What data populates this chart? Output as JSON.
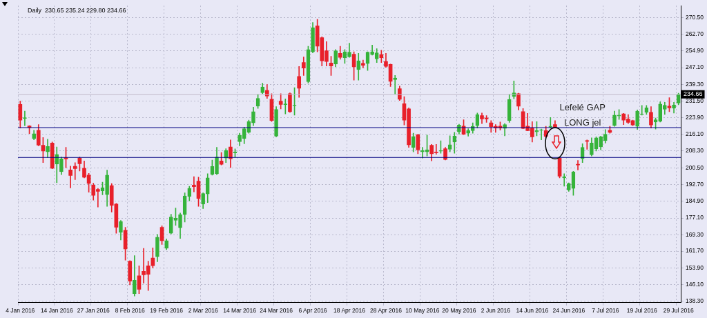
{
  "chart_data": {
    "type": "candlestick",
    "title": "Daily  230.65 235.24 229.80 234.66",
    "categories": [
      "4 Jan 2016",
      null,
      null,
      null,
      null,
      null,
      null,
      null,
      "14 Jan 2016",
      null,
      null,
      null,
      null,
      null,
      null,
      null,
      "27 Jan 2016",
      null,
      null,
      null,
      null,
      null,
      null,
      null,
      "8 Feb 2016",
      null,
      null,
      null,
      null,
      null,
      null,
      null,
      "19 Feb 2016",
      null,
      null,
      null,
      null,
      null,
      null,
      null,
      "2 Mar 2016",
      null,
      null,
      null,
      null,
      null,
      null,
      null,
      "14 Mar 2016",
      null,
      null,
      null,
      null,
      null,
      null,
      null,
      "24 Mar 2016",
      null,
      null,
      null,
      null,
      null,
      null,
      null,
      "6 Apr 2016",
      null,
      null,
      null,
      null,
      null,
      null,
      null,
      "18 Apr 2016",
      null,
      null,
      null,
      null,
      null,
      null,
      null,
      "28 Apr 2016",
      null,
      null,
      null,
      null,
      null,
      null,
      null,
      "10 May 2016",
      null,
      null,
      null,
      null,
      null,
      null,
      null,
      "20 May 2016",
      null,
      null,
      null,
      null,
      null,
      null,
      null,
      "2 Jun 2016",
      null,
      null,
      null,
      null,
      null,
      null,
      null,
      "14 Jun 2016",
      null,
      null,
      null,
      null,
      null,
      null,
      null,
      "24 Jun 2016",
      null,
      null,
      null,
      null,
      null,
      null,
      null,
      "7 Jul 2016",
      null,
      null,
      null,
      null,
      null,
      null,
      null,
      "19 Jul 2016",
      null,
      null,
      null,
      null,
      null,
      null,
      null,
      "29 Jul 2016"
    ],
    "ohlc": [
      [
        230.0,
        231.5,
        219.0,
        222.7
      ],
      [
        223.5,
        226.9,
        220.1,
        223.6
      ],
      [
        220.0,
        220.1,
        216.4,
        219.2
      ],
      [
        214.1,
        218.0,
        213.5,
        216.4
      ],
      [
        218.0,
        220.6,
        210.7,
        211.0
      ],
      [
        211.0,
        214.6,
        202.9,
        208.3
      ],
      [
        207.9,
        213.8,
        205.3,
        210.4
      ],
      [
        212.0,
        212.5,
        200.0,
        200.3
      ],
      [
        202.2,
        210.2,
        193.5,
        206.7
      ],
      [
        198.7,
        205.5,
        197.3,
        204.7
      ],
      [
        205.2,
        210.0,
        200.5,
        204.6
      ],
      [
        199.5,
        201.3,
        191.1,
        196.9
      ],
      [
        201.2,
        202.9,
        195.0,
        200.1
      ],
      [
        205.0,
        205.5,
        199.0,
        202.4
      ],
      [
        200.3,
        203.7,
        195.8,
        196.1
      ],
      [
        197.1,
        197.9,
        189.1,
        193.2
      ],
      [
        192.4,
        193.3,
        185.4,
        187.7
      ],
      [
        190.4,
        190.9,
        182.2,
        189.5
      ],
      [
        189.8,
        193.8,
        187.9,
        191.2
      ],
      [
        188.0,
        199.4,
        182.5,
        197.1
      ],
      [
        192.2,
        193.2,
        179.9,
        183.0
      ],
      [
        183.6,
        183.9,
        170.0,
        172.8
      ],
      [
        170.5,
        176.0,
        166.9,
        175.5
      ],
      [
        171.4,
        172.8,
        157.5,
        162.7
      ],
      [
        157.0,
        157.3,
        146.0,
        147.8
      ],
      [
        141.9,
        159.6,
        140.8,
        148.1
      ],
      [
        150.2,
        154.9,
        141.9,
        143.9
      ],
      [
        152.3,
        163.0,
        146.8,
        150.7
      ],
      [
        154.9,
        157.0,
        143.4,
        150.9
      ],
      [
        158.5,
        163.2,
        153.9,
        154.9
      ],
      [
        159.1,
        169.5,
        156.8,
        168.2
      ],
      [
        172.8,
        173.5,
        164.8,
        166.6
      ],
      [
        163.0,
        167.4,
        162.4,
        166.6
      ],
      [
        170.0,
        178.9,
        169.7,
        177.6
      ],
      [
        176.0,
        181.8,
        173.7,
        177.0
      ],
      [
        172.6,
        179.4,
        167.6,
        178.7
      ],
      [
        178.7,
        188.8,
        175.2,
        187.4
      ],
      [
        187.2,
        191.9,
        185.1,
        190.9
      ],
      [
        192.4,
        196.4,
        189.3,
        191.7
      ],
      [
        194.3,
        196.1,
        182.5,
        186.2
      ],
      [
        183.6,
        188.8,
        181.5,
        188.5
      ],
      [
        188.3,
        197.7,
        184.3,
        195.8
      ],
      [
        197.4,
        204.1,
        197.1,
        201.1
      ],
      [
        197.7,
        210.0,
        197.3,
        205.5
      ],
      [
        203.7,
        207.6,
        201.8,
        202.1
      ],
      [
        205.0,
        209.4,
        202.9,
        208.6
      ],
      [
        210.2,
        213.5,
        200.6,
        204.7
      ],
      [
        207.4,
        209.3,
        205.5,
        207.9
      ],
      [
        212.6,
        216.6,
        210.7,
        215.7
      ],
      [
        214.1,
        219.4,
        211.7,
        218.7
      ],
      [
        217.0,
        222.7,
        216.6,
        222.0
      ],
      [
        221.4,
        228.7,
        220.1,
        226.6
      ],
      [
        229.2,
        234.7,
        228.1,
        232.8
      ],
      [
        235.4,
        239.9,
        235.0,
        238.1
      ],
      [
        236.5,
        239.2,
        232.8,
        233.9
      ],
      [
        232.4,
        235.0,
        222.0,
        222.5
      ],
      [
        215.2,
        229.0,
        214.9,
        227.7
      ],
      [
        231.5,
        235.0,
        227.9,
        230.0
      ],
      [
        229.9,
        232.6,
        225.6,
        230.1
      ],
      [
        235.0,
        235.4,
        226.3,
        226.6
      ],
      [
        229.4,
        237.8,
        225.0,
        229.6
      ],
      [
        243.0,
        247.7,
        233.3,
        237.5
      ],
      [
        249.5,
        252.1,
        243.5,
        246.9
      ],
      [
        240.6,
        257.1,
        239.9,
        255.5
      ],
      [
        254.5,
        268.1,
        254.0,
        265.7
      ],
      [
        266.5,
        269.6,
        254.5,
        257.1
      ],
      [
        261.1,
        261.5,
        247.9,
        250.3
      ],
      [
        255.0,
        259.2,
        247.9,
        250.0
      ],
      [
        249.3,
        252.4,
        243.5,
        247.9
      ],
      [
        248.8,
        255.5,
        247.5,
        255.0
      ],
      [
        253.8,
        257.1,
        251.0,
        251.9
      ],
      [
        251.7,
        255.5,
        249.1,
        254.5
      ],
      [
        252.1,
        258.5,
        251.9,
        254.3
      ],
      [
        253.4,
        254.5,
        241.3,
        247.5
      ],
      [
        246.2,
        253.8,
        241.3,
        250.3
      ],
      [
        249.1,
        250.6,
        247.0,
        248.2
      ],
      [
        249.0,
        254.5,
        245.8,
        254.3
      ],
      [
        253.2,
        257.6,
        252.9,
        254.5
      ],
      [
        251.2,
        255.9,
        249.5,
        254.0
      ],
      [
        253.2,
        255.2,
        249.5,
        251.7
      ],
      [
        250.0,
        253.8,
        247.2,
        247.7
      ],
      [
        248.6,
        248.8,
        238.3,
        240.7
      ],
      [
        241.5,
        243.5,
        234.7,
        242.3
      ],
      [
        237.3,
        238.5,
        231.8,
        232.4
      ],
      [
        230.3,
        233.6,
        220.4,
        222.7
      ],
      [
        227.9,
        228.4,
        210.0,
        211.2
      ],
      [
        210.0,
        216.6,
        207.9,
        215.1
      ],
      [
        215.9,
        216.1,
        207.0,
        208.9
      ],
      [
        207.9,
        210.0,
        205.0,
        208.6
      ],
      [
        207.9,
        215.7,
        206.0,
        208.9
      ],
      [
        211.0,
        211.4,
        203.7,
        207.0
      ],
      [
        207.7,
        211.4,
        206.8,
        207.5
      ],
      [
        208.2,
        213.1,
        207.3,
        208.4
      ],
      [
        209.4,
        210.0,
        204.1,
        204.4
      ],
      [
        209.1,
        215.4,
        207.9,
        211.2
      ],
      [
        212.5,
        217.0,
        207.3,
        215.2
      ],
      [
        217.2,
        220.8,
        216.2,
        220.4
      ],
      [
        219.9,
        222.9,
        215.9,
        216.1
      ],
      [
        216.6,
        218.7,
        215.2,
        217.8
      ],
      [
        217.8,
        221.4,
        216.6,
        219.8
      ],
      [
        220.1,
        226.0,
        219.0,
        225.3
      ],
      [
        224.8,
        226.0,
        221.1,
        223.2
      ],
      [
        223.7,
        224.8,
        221.6,
        223.2
      ],
      [
        221.4,
        222.5,
        217.0,
        219.6
      ],
      [
        219.8,
        220.6,
        217.0,
        219.0
      ],
      [
        219.9,
        221.8,
        218.0,
        219.0
      ],
      [
        218.8,
        221.1,
        215.4,
        220.6
      ],
      [
        222.4,
        234.7,
        221.6,
        232.3
      ],
      [
        233.7,
        240.9,
        232.6,
        235.4
      ],
      [
        235.0,
        235.2,
        227.4,
        229.2
      ],
      [
        226.6,
        228.1,
        218.7,
        218.8
      ],
      [
        219.9,
        225.8,
        217.7,
        217.8
      ],
      [
        219.0,
        222.0,
        212.5,
        214.9
      ],
      [
        217.2,
        222.0,
        215.4,
        217.8
      ],
      [
        217.9,
        218.5,
        213.5,
        218.1
      ],
      [
        217.8,
        219.8,
        214.6,
        215.1
      ],
      [
        219.4,
        223.9,
        219.0,
        219.9
      ],
      [
        220.6,
        222.5,
        219.1,
        219.4
      ],
      [
        205.0,
        205.5,
        195.8,
        196.6
      ],
      [
        195.8,
        197.7,
        191.9,
        196.4
      ],
      [
        190.2,
        193.5,
        189.5,
        193.2
      ],
      [
        190.9,
        198.9,
        187.7,
        198.5
      ],
      [
        202.0,
        203.9,
        199.5,
        201.8
      ],
      [
        204.7,
        211.7,
        202.9,
        210.0
      ],
      [
        213.1,
        213.5,
        209.1,
        212.8
      ],
      [
        206.5,
        214.4,
        206.0,
        212.0
      ],
      [
        209.3,
        214.9,
        208.3,
        214.4
      ],
      [
        210.2,
        215.2,
        208.9,
        214.9
      ],
      [
        213.1,
        218.3,
        212.0,
        216.1
      ],
      [
        218.0,
        219.8,
        216.6,
        217.0
      ],
      [
        220.1,
        226.9,
        219.8,
        225.0
      ],
      [
        224.6,
        227.6,
        223.0,
        225.0
      ],
      [
        225.6,
        225.8,
        220.6,
        222.7
      ],
      [
        223.2,
        225.3,
        221.1,
        221.6
      ],
      [
        222.5,
        222.7,
        220.1,
        220.4
      ],
      [
        219.8,
        227.4,
        218.3,
        226.9
      ],
      [
        225.3,
        229.5,
        225.0,
        225.6
      ],
      [
        226.3,
        229.5,
        225.3,
        228.4
      ],
      [
        226.3,
        229.0,
        219.0,
        220.4
      ],
      [
        221.8,
        223.7,
        218.5,
        222.9
      ],
      [
        222.2,
        231.2,
        221.8,
        230.2
      ],
      [
        227.7,
        231.0,
        225.3,
        229.6
      ],
      [
        229.2,
        233.1,
        226.6,
        228.4
      ],
      [
        228.2,
        231.0,
        226.0,
        229.8
      ],
      [
        230.65,
        235.24,
        229.8,
        234.66
      ]
    ],
    "colors": [
      "#e8202a",
      "#35b33a",
      "#e8202a",
      "#35b33a",
      "#e8202a",
      "#e8202a",
      "#35b33a",
      "#e8202a",
      "#35b33a",
      "#35b33a",
      "#e8202a",
      "#e8202a",
      "#e8202a",
      "#e8202a",
      "#e8202a",
      "#e8202a",
      "#e8202a",
      "#e8202a",
      "#35b33a",
      "#35b33a",
      "#e8202a",
      "#e8202a",
      "#35b33a",
      "#e8202a",
      "#e8202a",
      "#35b33a",
      "#e8202a",
      "#e8202a",
      "#e8202a",
      "#e8202a",
      "#35b33a",
      "#e8202a",
      "#35b33a",
      "#35b33a",
      "#35b33a",
      "#35b33a",
      "#35b33a",
      "#35b33a",
      "#e8202a",
      "#e8202a",
      "#35b33a",
      "#35b33a",
      "#35b33a",
      "#35b33a",
      "#e8202a",
      "#35b33a",
      "#e8202a",
      "#35b33a",
      "#35b33a",
      "#35b33a",
      "#35b33a",
      "#35b33a",
      "#35b33a",
      "#35b33a",
      "#e8202a",
      "#e8202a",
      "#35b33a",
      "#e8202a",
      "#35b33a",
      "#e8202a",
      "#35b33a",
      "#e8202a",
      "#e8202a",
      "#35b33a",
      "#35b33a",
      "#e8202a",
      "#e8202a",
      "#e8202a",
      "#e8202a",
      "#35b33a",
      "#e8202a",
      "#35b33a",
      "#35b33a",
      "#e8202a",
      "#35b33a",
      "#e8202a",
      "#35b33a",
      "#35b33a",
      "#35b33a",
      "#e8202a",
      "#e8202a",
      "#e8202a",
      "#35b33a",
      "#e8202a",
      "#e8202a",
      "#e8202a",
      "#35b33a",
      "#e8202a",
      "#35b33a",
      "#35b33a",
      "#e8202a",
      "#e8202a",
      "#35b33a",
      "#e8202a",
      "#35b33a",
      "#35b33a",
      "#35b33a",
      "#e8202a",
      "#35b33a",
      "#35b33a",
      "#35b33a",
      "#e8202a",
      "#e8202a",
      "#e8202a",
      "#e8202a",
      "#e8202a",
      "#35b33a",
      "#35b33a",
      "#35b33a",
      "#e8202a",
      "#e8202a",
      "#e8202a",
      "#e8202a",
      "#35b33a",
      "#35b33a",
      "#e8202a",
      "#35b33a",
      "#e8202a",
      "#e8202a",
      "#35b33a",
      "#35b33a",
      "#35b33a",
      "#e8202a",
      "#35b33a",
      "#e8202a",
      "#35b33a",
      "#35b33a",
      "#35b33a",
      "#35b33a",
      "#e8202a",
      "#35b33a",
      "#35b33a",
      "#e8202a",
      "#e8202a",
      "#e8202a",
      "#35b33a",
      "#35b33a",
      "#35b33a",
      "#e8202a",
      "#35b33a",
      "#35b33a",
      "#35b33a",
      "#e8202a",
      "#35b33a",
      "#35b33a"
    ],
    "ylim": [
      137.7,
      276.0
    ],
    "yticks": [
      {
        "value": 138.3,
        "label": "138.30"
      },
      {
        "value": 146.1,
        "label": "146.10"
      },
      {
        "value": 153.9,
        "label": "153.90"
      },
      {
        "value": 161.7,
        "label": "161.70"
      },
      {
        "value": 169.3,
        "label": "169.30"
      },
      {
        "value": 177.1,
        "label": "177.10"
      },
      {
        "value": 184.9,
        "label": "184.90"
      },
      {
        "value": 192.7,
        "label": "192.70"
      },
      {
        "value": 200.5,
        "label": "200.50"
      },
      {
        "value": 208.3,
        "label": "208.30"
      },
      {
        "value": 216.1,
        "label": "216.10"
      },
      {
        "value": 223.9,
        "label": "223.90"
      },
      {
        "value": 231.5,
        "label": "231.50"
      },
      {
        "value": 239.3,
        "label": "239.30"
      },
      {
        "value": 247.1,
        "label": "247.10"
      },
      {
        "value": 254.9,
        "label": "254.90"
      },
      {
        "value": 262.7,
        "label": "262.70"
      },
      {
        "value": 270.5,
        "label": "270.50"
      }
    ],
    "ref_lines": [
      {
        "axis": "y",
        "value": 234.66,
        "label": "234.66",
        "color": "#c0b8c8"
      },
      {
        "axis": "y",
        "value": 219.2,
        "color": "#000080"
      },
      {
        "axis": "y",
        "value": 205.3,
        "color": "#000080"
      }
    ],
    "annotations": [
      "Lefelé GAP",
      "LONG jel"
    ],
    "grid": true,
    "legend": false
  }
}
